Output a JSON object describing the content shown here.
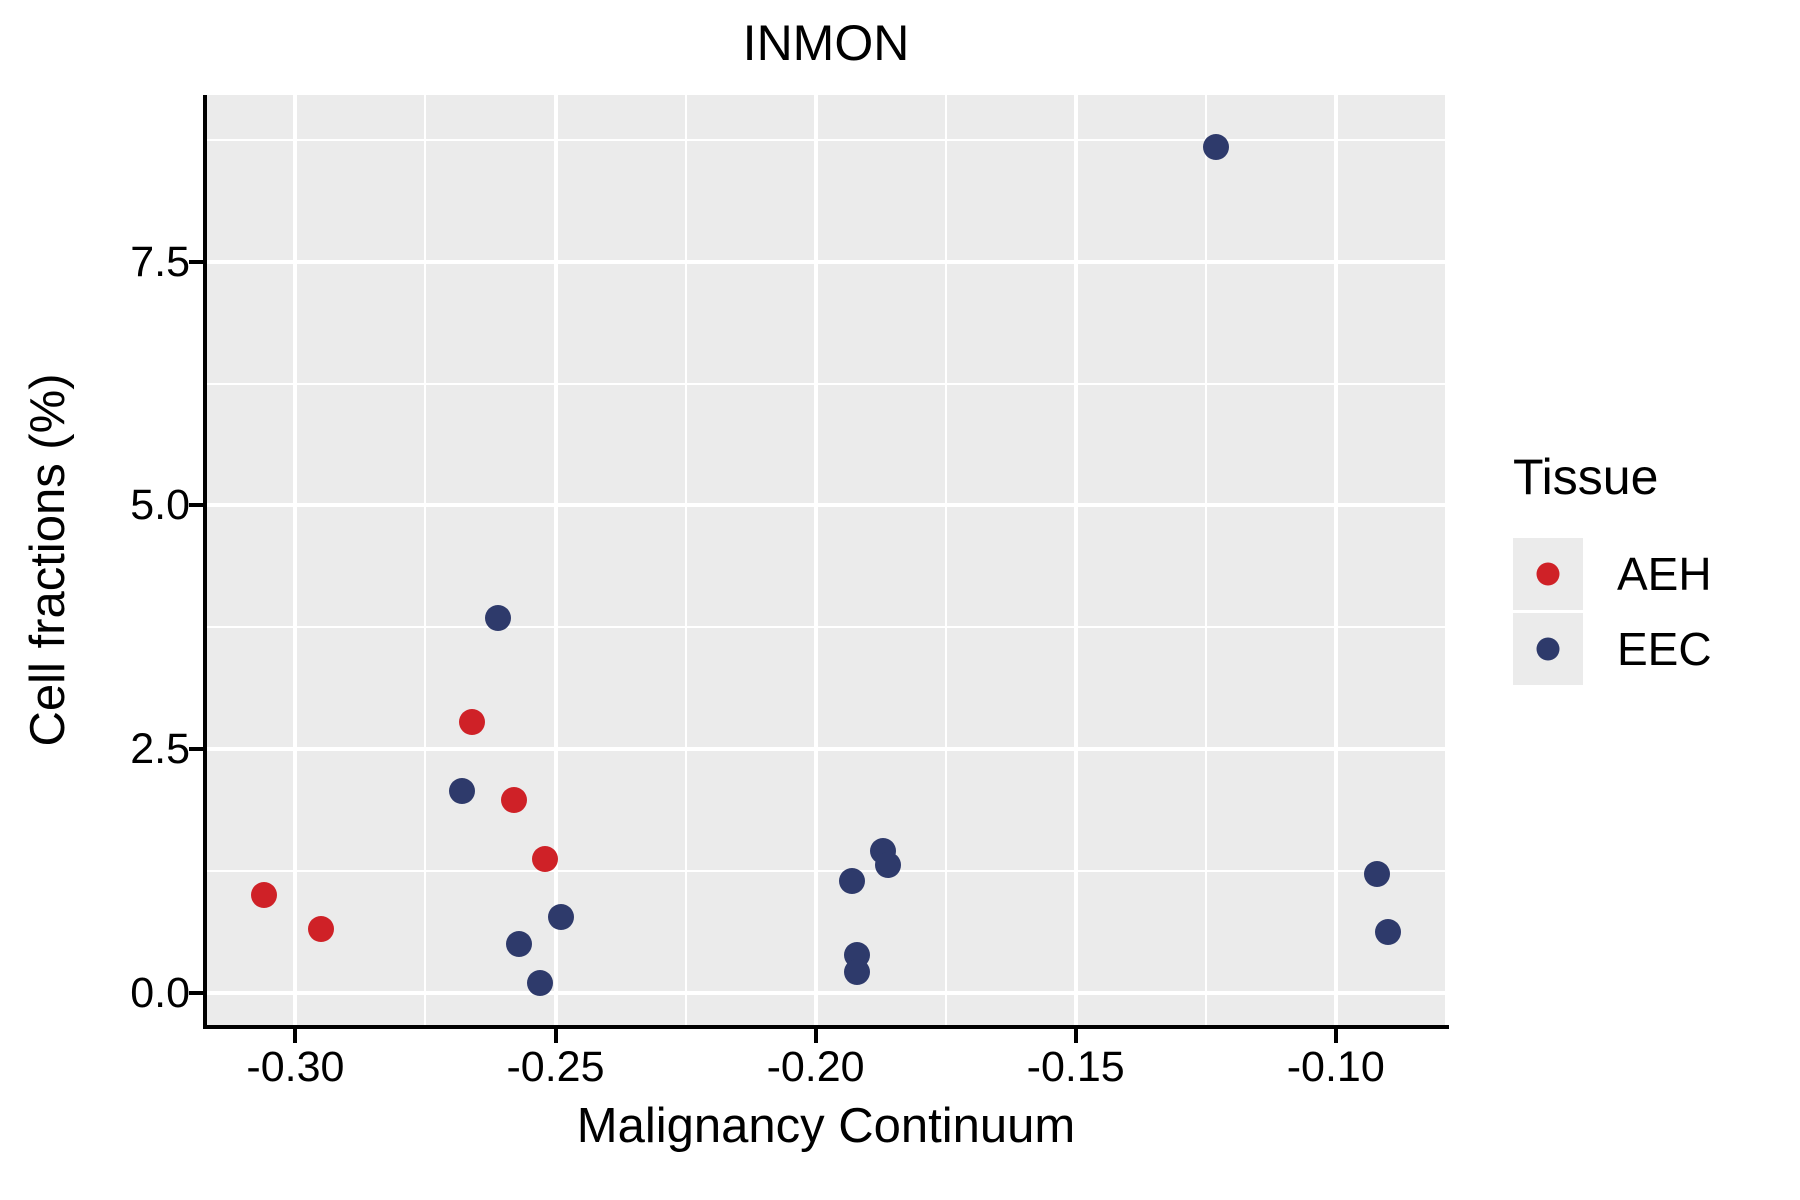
{
  "title": "INMON",
  "x_axis": {
    "label": "Malignancy Continuum",
    "range": [
      -0.317,
      -0.079
    ],
    "major_ticks": [
      -0.3,
      -0.25,
      -0.2,
      -0.15,
      -0.1
    ],
    "tick_labels": [
      "-0.30",
      "-0.25",
      "-0.20",
      "-0.15",
      "-0.10"
    ],
    "minor_gridlines": [
      -0.275,
      -0.225,
      -0.175,
      -0.125
    ]
  },
  "y_axis": {
    "label": "Cell fractions (%)",
    "range": [
      -0.33,
      9.21
    ],
    "major_ticks": [
      0.0,
      2.5,
      5.0,
      7.5
    ],
    "tick_labels": [
      "0.0",
      "2.5",
      "5.0",
      "7.5"
    ],
    "minor_gridlines": [
      1.25,
      3.75,
      6.25,
      8.75
    ]
  },
  "legend": {
    "title": "Tissue",
    "entries": [
      {
        "label": "AEH",
        "color": "#CF2127"
      },
      {
        "label": "EEC",
        "color": "#2E3A6B"
      }
    ]
  },
  "colors": {
    "panel_background": "#EBEBEB",
    "gridline": "#FFFFFF",
    "axis": "#000000",
    "aeh": "#CF2127",
    "eec": "#2E3A6B"
  },
  "chart_data": {
    "type": "scatter",
    "title": "INMON",
    "xlabel": "Malignancy Continuum",
    "ylabel": "Cell fractions (%)",
    "xlim": [
      -0.317,
      -0.079
    ],
    "ylim": [
      -0.33,
      9.21
    ],
    "grid": "on",
    "legend_position": "right",
    "series": [
      {
        "name": "AEH",
        "color": "#CF2127",
        "points": [
          [
            -0.306,
            1.0
          ],
          [
            -0.295,
            0.65
          ],
          [
            -0.266,
            2.78
          ],
          [
            -0.258,
            1.98
          ],
          [
            -0.252,
            1.37
          ]
        ]
      },
      {
        "name": "EEC",
        "color": "#2E3A6B",
        "points": [
          [
            -0.268,
            2.07
          ],
          [
            -0.261,
            3.85
          ],
          [
            -0.257,
            0.5
          ],
          [
            -0.253,
            0.1
          ],
          [
            -0.249,
            0.78
          ],
          [
            -0.193,
            1.15
          ],
          [
            -0.192,
            0.39
          ],
          [
            -0.192,
            0.21
          ],
          [
            -0.187,
            1.45
          ],
          [
            -0.186,
            1.31
          ],
          [
            -0.123,
            8.68
          ],
          [
            -0.092,
            1.22
          ],
          [
            -0.09,
            0.62
          ]
        ]
      }
    ]
  }
}
